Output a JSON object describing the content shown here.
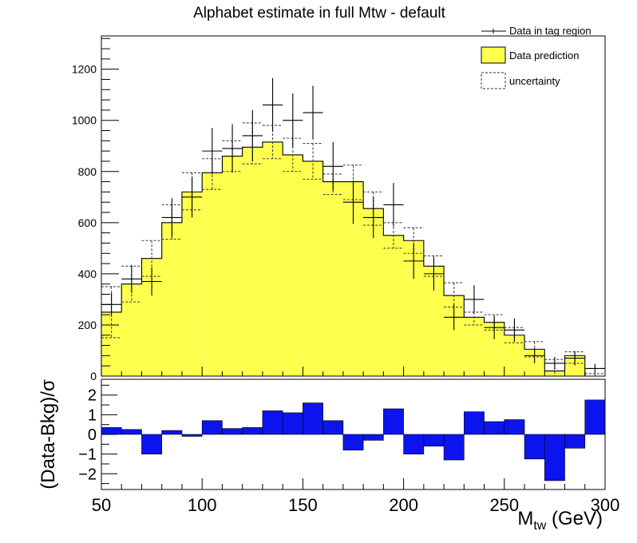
{
  "chart_data": [
    {
      "type": "bar",
      "title": "Alphabet estimate in full Mtw - default",
      "xlabel": "M_tw (GeV)",
      "ylabel": "",
      "xlim": [
        50,
        300
      ],
      "ylim": [
        0,
        1330
      ],
      "yticks": [
        0,
        200,
        400,
        600,
        800,
        1000,
        1200
      ],
      "bin_edges": [
        50,
        60,
        70,
        80,
        90,
        100,
        110,
        120,
        130,
        140,
        150,
        160,
        170,
        180,
        190,
        200,
        210,
        220,
        230,
        240,
        250,
        260,
        270,
        280,
        290,
        300
      ],
      "legend_position": "top-right",
      "series": [
        {
          "name": "Data in tag region",
          "style": "points with error bars",
          "color": "#000000",
          "values": [
            280,
            380,
            370,
            620,
            700,
            880,
            890,
            940,
            1060,
            1000,
            1030,
            820,
            680,
            620,
            670,
            450,
            400,
            230,
            300,
            190,
            180,
            80,
            50,
            70,
            30
          ],
          "errors": [
            45,
            55,
            55,
            75,
            80,
            90,
            95,
            100,
            105,
            105,
            105,
            95,
            85,
            80,
            85,
            70,
            65,
            50,
            55,
            45,
            45,
            30,
            25,
            28,
            18
          ]
        },
        {
          "name": "Data prediction",
          "style": "filled histogram",
          "color": "#ffff4d",
          "values": [
            250,
            360,
            460,
            600,
            720,
            795,
            860,
            895,
            915,
            865,
            840,
            760,
            760,
            655,
            550,
            530,
            430,
            315,
            230,
            210,
            160,
            105,
            20,
            80,
            0
          ]
        },
        {
          "name": "uncertainty",
          "style": "dashed band",
          "color": "#555555",
          "upper": [
            350,
            430,
            530,
            670,
            795,
            850,
            920,
            990,
            980,
            930,
            910,
            790,
            825,
            720,
            600,
            580,
            470,
            365,
            250,
            240,
            190,
            135,
            65,
            95,
            10
          ],
          "lower": [
            150,
            290,
            390,
            535,
            650,
            730,
            800,
            830,
            850,
            800,
            770,
            710,
            690,
            590,
            500,
            480,
            390,
            270,
            200,
            180,
            130,
            75,
            0,
            50,
            0
          ]
        }
      ]
    },
    {
      "type": "bar",
      "title": "",
      "xlabel": "M_tw (GeV)",
      "ylabel": "(Data-Bkg)/σ",
      "xlim": [
        50,
        300
      ],
      "ylim": [
        -2.8,
        2.8
      ],
      "xticks": [
        50,
        100,
        150,
        200,
        250,
        300
      ],
      "yticks": [
        -2,
        -1,
        0,
        1,
        2
      ],
      "series": [
        {
          "name": "",
          "color": "#0b14ee",
          "values": [
            0.35,
            0.25,
            -1.0,
            0.2,
            -0.1,
            0.7,
            0.3,
            0.35,
            1.2,
            1.1,
            1.6,
            0.7,
            -0.8,
            -0.3,
            1.3,
            -1.0,
            -0.6,
            -1.3,
            1.15,
            0.65,
            0.75,
            -1.25,
            -2.35,
            -0.7,
            1.75
          ]
        }
      ]
    }
  ]
}
